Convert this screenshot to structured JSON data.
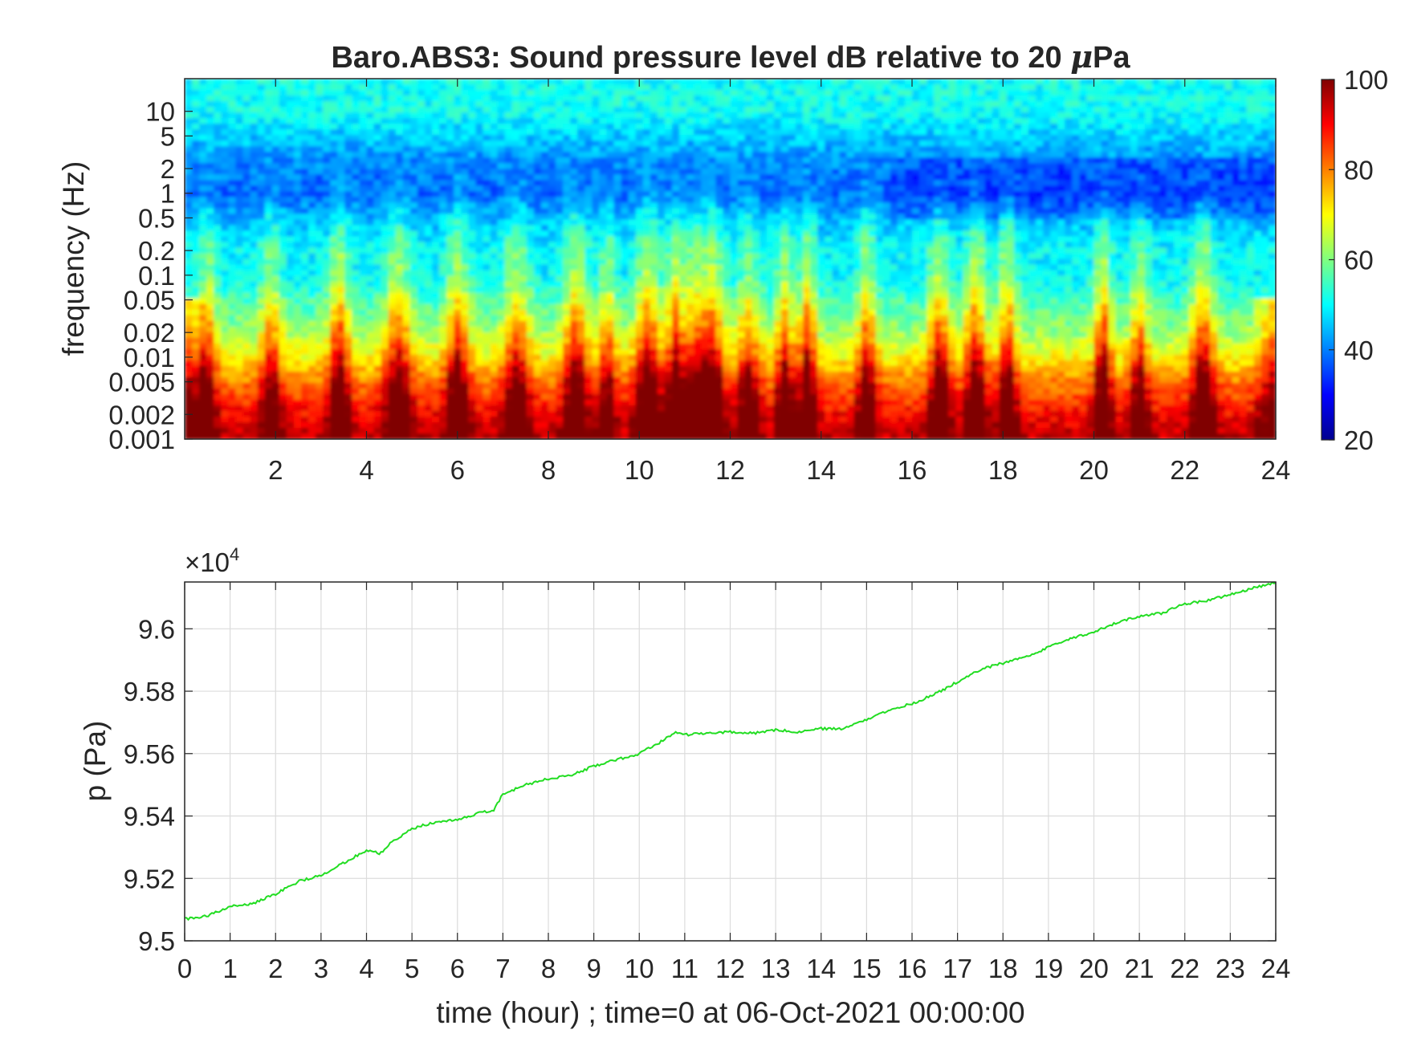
{
  "colors": {
    "pressure_line": "#22dd22",
    "axis": "#262626",
    "grid": "#dcdcdc",
    "colormap": "jet"
  },
  "chart_data": [
    {
      "type": "heatmap",
      "title_prefix": "Baro.ABS3: Sound pressure level dB relative to 20 ",
      "title_mu": "μ",
      "title_suffix": "Pa",
      "ylabel": "frequency (Hz)",
      "xlim": [
        0,
        24
      ],
      "x_ticks": [
        "2",
        "4",
        "6",
        "8",
        "10",
        "12",
        "14",
        "16",
        "18",
        "20",
        "22",
        "24"
      ],
      "x_tick_values": [
        2,
        4,
        6,
        8,
        10,
        12,
        14,
        16,
        18,
        20,
        22,
        24
      ],
      "y_scale": "log",
      "ylim": [
        0.001,
        25
      ],
      "y_ticks": [
        "0.001",
        "0.002",
        "0.005",
        "0.01",
        "0.02",
        "0.05",
        "0.1",
        "0.2",
        "0.5",
        "1",
        "2",
        "5",
        "10"
      ],
      "y_tick_values": [
        0.001,
        0.002,
        0.005,
        0.01,
        0.02,
        0.05,
        0.1,
        0.2,
        0.5,
        1,
        2,
        5,
        10
      ],
      "colorbar": {
        "range": [
          20,
          100
        ],
        "ticks": [
          "20",
          "40",
          "60",
          "80",
          "100"
        ],
        "tick_values": [
          20,
          40,
          60,
          80,
          100
        ]
      },
      "band_levels_db": [
        {
          "freq_hz": 0.001,
          "level_db": 95
        },
        {
          "freq_hz": 0.002,
          "level_db": 90
        },
        {
          "freq_hz": 0.005,
          "level_db": 80
        },
        {
          "freq_hz": 0.01,
          "level_db": 70
        },
        {
          "freq_hz": 0.02,
          "level_db": 62
        },
        {
          "freq_hz": 0.05,
          "level_db": 55
        },
        {
          "freq_hz": 0.1,
          "level_db": 49
        },
        {
          "freq_hz": 0.2,
          "level_db": 50
        },
        {
          "freq_hz": 0.5,
          "level_db": 44
        },
        {
          "freq_hz": 1,
          "level_db": 38
        },
        {
          "freq_hz": 2,
          "level_db": 40
        },
        {
          "freq_hz": 5,
          "level_db": 46
        },
        {
          "freq_hz": 10,
          "level_db": 51
        }
      ],
      "burst_hours": [
        0.5,
        1.9,
        3.4,
        4.7,
        6.0,
        7.3,
        8.6,
        9.3,
        10.2,
        10.8,
        11.2,
        11.6,
        12.4,
        13.2,
        13.7,
        15.0,
        16.6,
        17.4,
        18.1,
        20.2,
        21.0,
        22.4
      ]
    },
    {
      "type": "line",
      "ylabel": "p (Pa)",
      "xlabel": "time (hour) ; time=0 at 06-Oct-2021 00:00:00",
      "xlim": [
        0,
        24
      ],
      "ylim": [
        95000,
        96150
      ],
      "y_exponent_label": "×10",
      "y_exponent_power": "4",
      "x_ticks": [
        "0",
        "1",
        "2",
        "3",
        "4",
        "5",
        "6",
        "7",
        "8",
        "9",
        "10",
        "11",
        "12",
        "13",
        "14",
        "15",
        "16",
        "17",
        "18",
        "19",
        "20",
        "21",
        "22",
        "23",
        "24"
      ],
      "x_tick_values": [
        0,
        1,
        2,
        3,
        4,
        5,
        6,
        7,
        8,
        9,
        10,
        11,
        12,
        13,
        14,
        15,
        16,
        17,
        18,
        19,
        20,
        21,
        22,
        23,
        24
      ],
      "y_ticks": [
        "9.5",
        "9.52",
        "9.54",
        "9.56",
        "9.58",
        "9.6"
      ],
      "y_tick_values": [
        95000,
        95200,
        95400,
        95600,
        95800,
        96000
      ],
      "grid": true,
      "series": [
        {
          "x": [
            0,
            0.5,
            1,
            1.5,
            2,
            2.5,
            3,
            3.5,
            4,
            4.3,
            4.5,
            5,
            5.5,
            6,
            6.5,
            6.8,
            7,
            7.5,
            8,
            8.5,
            9,
            9.5,
            10,
            10.5,
            10.8,
            11,
            11.5,
            12,
            12.5,
            13,
            13.5,
            14,
            14.5,
            15,
            15.5,
            16,
            16.5,
            17,
            17.5,
            18,
            18.5,
            19,
            19.5,
            20,
            20.5,
            21,
            21.5,
            22,
            22.5,
            23,
            23.5,
            24
          ],
          "y": [
            95070,
            95080,
            95110,
            95120,
            95150,
            95190,
            95210,
            95250,
            95290,
            95280,
            95310,
            95360,
            95380,
            95390,
            95410,
            95420,
            95470,
            95500,
            95520,
            95530,
            95560,
            95580,
            95600,
            95640,
            95670,
            95660,
            95665,
            95670,
            95665,
            95675,
            95670,
            95680,
            95680,
            95710,
            95740,
            95760,
            95790,
            95830,
            95870,
            95890,
            95910,
            95940,
            95970,
            95990,
            96020,
            96040,
            96050,
            96080,
            96090,
            96110,
            96130,
            96150
          ]
        }
      ]
    }
  ]
}
